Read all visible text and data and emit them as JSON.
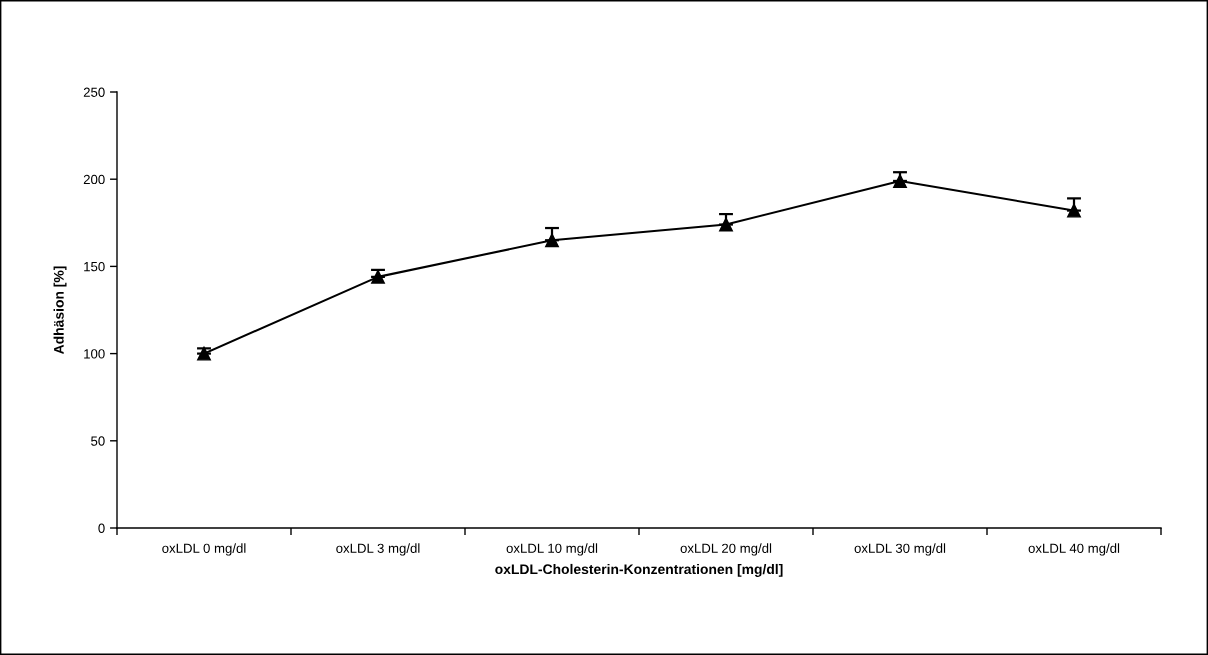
{
  "chart_data": {
    "type": "line",
    "xlabel": "oxLDL-Cholesterin-Konzentrationen [mg/dl]",
    "ylabel": "Adhäsion [%]",
    "categories": [
      "oxLDL 0 mg/dl",
      "oxLDL 3 mg/dl",
      "oxLDL 10 mg/dl",
      "oxLDL 20 mg/dl",
      "oxLDL 30 mg/dl",
      "oxLDL 40 mg/dl"
    ],
    "series": [
      {
        "color": "#000000",
        "values": [
          100,
          144,
          165,
          174,
          199,
          182
        ],
        "errors": [
          [
            100,
            103
          ],
          [
            144,
            148
          ],
          [
            165,
            172
          ],
          [
            174,
            180
          ],
          [
            199,
            204
          ],
          [
            182,
            189
          ]
        ]
      }
    ],
    "ylim": [
      0,
      250
    ],
    "yticks": [
      0,
      50,
      100,
      150,
      200,
      250
    ],
    "marker": "triangle",
    "line_style": "solid"
  }
}
